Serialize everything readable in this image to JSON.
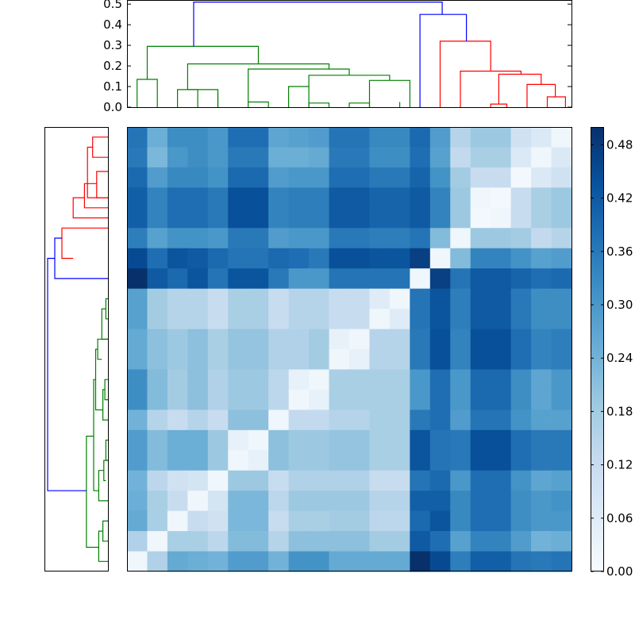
{
  "chart_data": {
    "type": "heatmap",
    "title": "",
    "colormap": "Blues",
    "grid": false,
    "rows": 22,
    "cols": 22,
    "colorbar": {
      "min": 0.0,
      "max": 0.5,
      "ticks": [
        0.0,
        0.06,
        0.12,
        0.18,
        0.24,
        0.3,
        0.36,
        0.42,
        0.48
      ],
      "tick_labels": [
        "0.00",
        "0.06",
        "0.12",
        "0.18",
        "0.24",
        "0.30",
        "0.36",
        "0.42",
        "0.48"
      ]
    },
    "dendrogram_top": {
      "ylim": [
        0.0,
        0.52
      ],
      "ticks": [
        0.0,
        0.1,
        0.2,
        0.3,
        0.4,
        0.5
      ],
      "tick_labels": [
        "0.0",
        "0.1",
        "0.2",
        "0.3",
        "0.4",
        "0.5"
      ],
      "links": [
        {
          "x": [
            0.5,
            0.5,
            1.5,
            1.5
          ],
          "y": [
            0,
            0.135,
            0.135,
            0
          ],
          "color": "#008000"
        },
        {
          "x": [
            2.5,
            2.5,
            3.5,
            3.5
          ],
          "y": [
            0,
            0.085,
            0.085,
            0
          ],
          "color": "#008000"
        },
        {
          "x": [
            3.0,
            3.0,
            4.5,
            4.5
          ],
          "y": [
            0.085,
            0.085,
            0.085,
            0
          ],
          "color": "#008000"
        },
        {
          "x": [
            4.5,
            4.5,
            4.5,
            4.5
          ],
          "y": [
            0,
            0.07,
            0.07,
            0
          ],
          "color": "#008000"
        },
        {
          "x": [
            6.0,
            6.0,
            7.0,
            7.0
          ],
          "y": [
            0,
            0.025,
            0.025,
            0
          ],
          "color": "#008000"
        },
        {
          "x": [
            8.0,
            8.0,
            9.0,
            9.0
          ],
          "y": [
            0,
            0.1,
            0.1,
            0
          ],
          "color": "#008000"
        },
        {
          "x": [
            9.0,
            9.0,
            10.0,
            10.0
          ],
          "y": [
            0,
            0.02,
            0.02,
            0
          ],
          "color": "#008000"
        },
        {
          "x": [
            11.0,
            11.0,
            12.0,
            12.0
          ],
          "y": [
            0,
            0.02,
            0.02,
            0
          ],
          "color": "#008000"
        },
        {
          "x": [
            12.0,
            12.0,
            14.0,
            14.0
          ],
          "y": [
            0,
            0.13,
            0.13,
            0
          ],
          "color": "#008000"
        },
        {
          "x": [
            13.5,
            13.5,
            13.5,
            13.5
          ],
          "y": [
            0,
            0.025,
            0.025,
            0
          ],
          "color": "#008000"
        },
        {
          "x": [
            9.0,
            9.0,
            13.0,
            13.0
          ],
          "y": [
            0.1,
            0.155,
            0.155,
            0.13
          ],
          "color": "#008000"
        },
        {
          "x": [
            6.0,
            6.0,
            11.0,
            11.0
          ],
          "y": [
            0.025,
            0.185,
            0.185,
            0.155
          ],
          "color": "#008000"
        },
        {
          "x": [
            3.0,
            3.0,
            10.0,
            10.0
          ],
          "y": [
            0.085,
            0.21,
            0.21,
            0.185
          ],
          "color": "#008000"
        },
        {
          "x": [
            1.0,
            1.0,
            6.5,
            6.5
          ],
          "y": [
            0.135,
            0.295,
            0.295,
            0.21
          ],
          "color": "#008000"
        },
        {
          "x": [
            18.0,
            18.0,
            18.8,
            18.8
          ],
          "y": [
            0,
            0.015,
            0.015,
            0
          ],
          "color": "#ff0000"
        },
        {
          "x": [
            19.8,
            19.8,
            21.2,
            21.2
          ],
          "y": [
            0,
            0.11,
            0.11,
            0.05
          ],
          "color": "#ff0000"
        },
        {
          "x": [
            20.8,
            20.8,
            21.7,
            21.7
          ],
          "y": [
            0,
            0.05,
            0.05,
            0
          ],
          "color": "#ff0000"
        },
        {
          "x": [
            18.4,
            18.4,
            20.5,
            20.5
          ],
          "y": [
            0.015,
            0.16,
            0.16,
            0.11
          ],
          "color": "#ff0000"
        },
        {
          "x": [
            16.5,
            16.5,
            19.5,
            19.5
          ],
          "y": [
            0,
            0.175,
            0.175,
            0.16
          ],
          "color": "#ff0000"
        },
        {
          "x": [
            15.5,
            15.5,
            18.0,
            18.0
          ],
          "y": [
            0,
            0.32,
            0.32,
            0.175
          ],
          "color": "#ff0000"
        },
        {
          "x": [
            14.5,
            14.5,
            16.8,
            16.8
          ],
          "y": [
            0,
            0.45,
            0.45,
            0.32
          ],
          "color": "#0000ff"
        },
        {
          "x": [
            3.3,
            3.3,
            15.6,
            15.6
          ],
          "y": [
            0.295,
            0.51,
            0.51,
            0.45
          ],
          "color": "#0000ff"
        }
      ]
    },
    "dendrogram_left": {
      "links": [
        {
          "y": [
            0.5,
            0.5,
            1.5,
            1.5
          ],
          "x": [
            0,
            0.15,
            0.15,
            0
          ],
          "color": "#ff0000"
        },
        {
          "y": [
            1.0,
            1.0,
            3.5,
            3.5
          ],
          "x": [
            0.15,
            0.2,
            0.2,
            0
          ],
          "color": "#ff0000"
        },
        {
          "y": [
            2.2,
            2.2,
            3.5,
            3.5
          ],
          "x": [
            0,
            0.11,
            0.11,
            0
          ],
          "color": "#ff0000"
        },
        {
          "y": [
            2.8,
            2.8,
            4.0,
            4.0
          ],
          "x": [
            0.11,
            0.23,
            0.23,
            0
          ],
          "color": "#ff0000"
        },
        {
          "y": [
            3.5,
            3.5,
            4.5,
            4.5
          ],
          "x": [
            0.23,
            0.34,
            0.34,
            0
          ],
          "color": "#ff0000"
        },
        {
          "y": [
            5.0,
            5.0,
            6.5,
            6.5
          ],
          "x": [
            0,
            0.45,
            0.45,
            0.34
          ],
          "color": "#ff0000"
        },
        {
          "y": [
            5.5,
            5.5,
            7.5,
            7.5
          ],
          "x": [
            0.45,
            0.52,
            0.52,
            0
          ],
          "color": "#0000ff"
        },
        {
          "y": [
            8.5,
            8.5,
            9.5,
            9.5
          ],
          "x": [
            0,
            0.02,
            0.02,
            0
          ],
          "color": "#008000"
        },
        {
          "y": [
            9.0,
            9.0,
            10.5,
            10.5
          ],
          "x": [
            0.02,
            0.06,
            0.06,
            0
          ],
          "color": "#008000"
        },
        {
          "y": [
            10.5,
            10.5,
            11.5,
            11.5
          ],
          "x": [
            0,
            0.1,
            0.1,
            0.06
          ],
          "color": "#008000"
        },
        {
          "y": [
            12.5,
            12.5,
            13.5,
            13.5
          ],
          "x": [
            0,
            0.03,
            0.03,
            0
          ],
          "color": "#008000"
        },
        {
          "y": [
            13.0,
            13.0,
            14.5,
            14.5
          ],
          "x": [
            0.03,
            0.05,
            0.05,
            0
          ],
          "color": "#008000"
        },
        {
          "y": [
            11.0,
            11.0,
            14.0,
            14.0
          ],
          "x": [
            0.1,
            0.12,
            0.12,
            0.05
          ],
          "color": "#008000"
        },
        {
          "y": [
            15.5,
            15.5,
            16.5,
            16.5
          ],
          "x": [
            0,
            0.02,
            0.02,
            0
          ],
          "color": "#008000"
        },
        {
          "y": [
            16.5,
            16.5,
            17.5,
            17.5
          ],
          "x": [
            0,
            0.04,
            0.04,
            0.02
          ],
          "color": "#008000"
        },
        {
          "y": [
            17.0,
            17.0,
            18.5,
            18.5
          ],
          "x": [
            0.04,
            0.09,
            0.09,
            0
          ],
          "color": "#008000"
        },
        {
          "y": [
            12.5,
            12.5,
            18.0,
            18.0
          ],
          "x": [
            0.12,
            0.14,
            0.14,
            0.09
          ],
          "color": "#008000"
        },
        {
          "y": [
            19.5,
            19.5,
            20.5,
            20.5
          ],
          "x": [
            0,
            0.05,
            0.05,
            0
          ],
          "color": "#008000"
        },
        {
          "y": [
            20.0,
            20.0,
            21.5,
            21.5
          ],
          "x": [
            0.05,
            0.09,
            0.09,
            0
          ],
          "color": "#008000"
        },
        {
          "y": [
            15.3,
            15.3,
            20.8,
            20.8
          ],
          "x": [
            0.14,
            0.21,
            0.21,
            0.09
          ],
          "color": "#008000"
        },
        {
          "y": [
            6.5,
            6.5,
            18.0,
            18.0
          ],
          "x": [
            0.52,
            0.59,
            0.59,
            0.21
          ],
          "color": "#0000ff"
        }
      ]
    },
    "matrix": [
      [
        0.37,
        0.25,
        0.32,
        0.32,
        0.3,
        0.38,
        0.38,
        0.27,
        0.28,
        0.29,
        0.37,
        0.37,
        0.33,
        0.33,
        0.39,
        0.29,
        0.15,
        0.19,
        0.19,
        0.1,
        0.07,
        0.02
      ],
      [
        0.36,
        0.23,
        0.3,
        0.32,
        0.3,
        0.36,
        0.36,
        0.25,
        0.25,
        0.26,
        0.36,
        0.36,
        0.32,
        0.32,
        0.38,
        0.28,
        0.13,
        0.17,
        0.17,
        0.07,
        0.02,
        0.07
      ],
      [
        0.39,
        0.29,
        0.33,
        0.33,
        0.31,
        0.39,
        0.39,
        0.29,
        0.3,
        0.3,
        0.38,
        0.38,
        0.36,
        0.36,
        0.4,
        0.31,
        0.18,
        0.12,
        0.12,
        0.01,
        0.07,
        0.1
      ],
      [
        0.41,
        0.34,
        0.38,
        0.38,
        0.36,
        0.44,
        0.44,
        0.34,
        0.35,
        0.35,
        0.42,
        0.42,
        0.4,
        0.4,
        0.42,
        0.34,
        0.19,
        0.02,
        0.01,
        0.12,
        0.17,
        0.19
      ],
      [
        0.41,
        0.34,
        0.38,
        0.38,
        0.36,
        0.44,
        0.44,
        0.34,
        0.35,
        0.35,
        0.42,
        0.42,
        0.4,
        0.4,
        0.42,
        0.34,
        0.19,
        0.01,
        0.02,
        0.12,
        0.17,
        0.19
      ],
      [
        0.35,
        0.28,
        0.31,
        0.31,
        0.3,
        0.36,
        0.36,
        0.29,
        0.3,
        0.3,
        0.36,
        0.36,
        0.35,
        0.35,
        0.37,
        0.22,
        0.02,
        0.19,
        0.19,
        0.18,
        0.13,
        0.15
      ],
      [
        0.45,
        0.38,
        0.43,
        0.42,
        0.39,
        0.37,
        0.37,
        0.39,
        0.38,
        0.36,
        0.44,
        0.44,
        0.43,
        0.43,
        0.47,
        0.02,
        0.22,
        0.34,
        0.34,
        0.31,
        0.28,
        0.29
      ],
      [
        0.5,
        0.42,
        0.39,
        0.43,
        0.37,
        0.43,
        0.43,
        0.36,
        0.3,
        0.3,
        0.37,
        0.37,
        0.37,
        0.37,
        0.02,
        0.47,
        0.37,
        0.42,
        0.42,
        0.4,
        0.38,
        0.39
      ],
      [
        0.28,
        0.18,
        0.15,
        0.15,
        0.12,
        0.17,
        0.17,
        0.12,
        0.15,
        0.15,
        0.12,
        0.12,
        0.06,
        0.02,
        0.37,
        0.43,
        0.35,
        0.42,
        0.42,
        0.36,
        0.32,
        0.32
      ],
      [
        0.28,
        0.18,
        0.15,
        0.15,
        0.12,
        0.17,
        0.17,
        0.12,
        0.15,
        0.15,
        0.12,
        0.12,
        0.02,
        0.06,
        0.37,
        0.43,
        0.35,
        0.42,
        0.42,
        0.36,
        0.32,
        0.32
      ],
      [
        0.26,
        0.21,
        0.19,
        0.21,
        0.17,
        0.2,
        0.2,
        0.16,
        0.16,
        0.18,
        0.04,
        0.02,
        0.15,
        0.15,
        0.36,
        0.44,
        0.34,
        0.44,
        0.44,
        0.38,
        0.34,
        0.35
      ],
      [
        0.26,
        0.21,
        0.19,
        0.21,
        0.17,
        0.2,
        0.2,
        0.16,
        0.16,
        0.18,
        0.02,
        0.04,
        0.15,
        0.15,
        0.36,
        0.44,
        0.34,
        0.44,
        0.44,
        0.38,
        0.34,
        0.35
      ],
      [
        0.32,
        0.22,
        0.18,
        0.21,
        0.16,
        0.19,
        0.19,
        0.14,
        0.04,
        0.02,
        0.17,
        0.17,
        0.17,
        0.17,
        0.3,
        0.38,
        0.3,
        0.39,
        0.39,
        0.32,
        0.27,
        0.3
      ],
      [
        0.32,
        0.22,
        0.18,
        0.21,
        0.16,
        0.19,
        0.19,
        0.14,
        0.02,
        0.04,
        0.17,
        0.17,
        0.17,
        0.17,
        0.3,
        0.38,
        0.3,
        0.39,
        0.39,
        0.32,
        0.27,
        0.3
      ],
      [
        0.24,
        0.15,
        0.12,
        0.15,
        0.12,
        0.21,
        0.21,
        0.02,
        0.13,
        0.13,
        0.15,
        0.15,
        0.17,
        0.17,
        0.36,
        0.38,
        0.29,
        0.37,
        0.37,
        0.31,
        0.28,
        0.28
      ],
      [
        0.29,
        0.22,
        0.25,
        0.25,
        0.19,
        0.04,
        0.02,
        0.21,
        0.19,
        0.19,
        0.2,
        0.2,
        0.17,
        0.17,
        0.43,
        0.37,
        0.36,
        0.44,
        0.44,
        0.38,
        0.36,
        0.36
      ],
      [
        0.29,
        0.22,
        0.25,
        0.25,
        0.19,
        0.02,
        0.04,
        0.21,
        0.19,
        0.19,
        0.2,
        0.2,
        0.17,
        0.17,
        0.43,
        0.37,
        0.36,
        0.44,
        0.44,
        0.38,
        0.36,
        0.36
      ],
      [
        0.24,
        0.14,
        0.1,
        0.09,
        0.02,
        0.19,
        0.19,
        0.12,
        0.16,
        0.16,
        0.16,
        0.16,
        0.12,
        0.12,
        0.37,
        0.39,
        0.3,
        0.38,
        0.38,
        0.31,
        0.27,
        0.28
      ],
      [
        0.25,
        0.17,
        0.12,
        0.02,
        0.09,
        0.23,
        0.23,
        0.14,
        0.19,
        0.19,
        0.19,
        0.19,
        0.15,
        0.15,
        0.41,
        0.41,
        0.33,
        0.38,
        0.38,
        0.32,
        0.3,
        0.31
      ],
      [
        0.26,
        0.17,
        0.02,
        0.12,
        0.1,
        0.23,
        0.23,
        0.12,
        0.17,
        0.17,
        0.18,
        0.18,
        0.14,
        0.14,
        0.39,
        0.43,
        0.33,
        0.38,
        0.38,
        0.32,
        0.3,
        0.3
      ],
      [
        0.16,
        0.02,
        0.17,
        0.17,
        0.14,
        0.22,
        0.22,
        0.15,
        0.21,
        0.21,
        0.21,
        0.21,
        0.18,
        0.18,
        0.42,
        0.38,
        0.28,
        0.34,
        0.34,
        0.29,
        0.24,
        0.25
      ],
      [
        0.02,
        0.16,
        0.26,
        0.25,
        0.24,
        0.29,
        0.29,
        0.24,
        0.31,
        0.31,
        0.26,
        0.26,
        0.26,
        0.26,
        0.5,
        0.45,
        0.35,
        0.41,
        0.41,
        0.37,
        0.36,
        0.37
      ]
    ]
  }
}
